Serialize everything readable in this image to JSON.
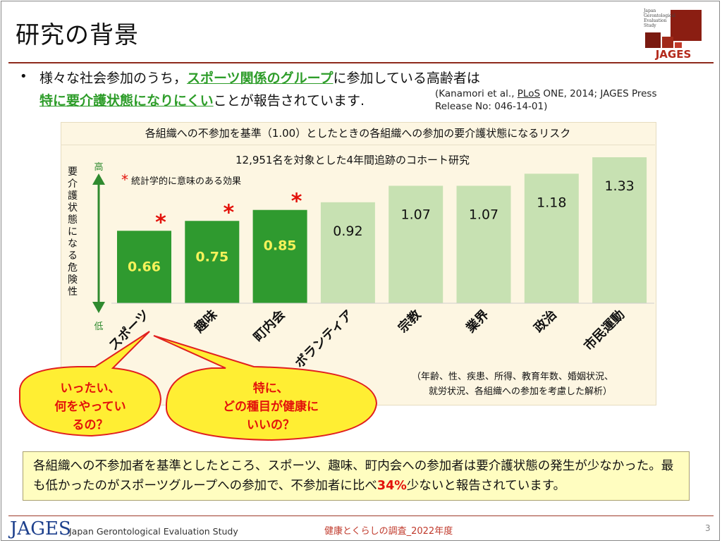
{
  "header": {
    "title": "研究の背景"
  },
  "logo": {
    "small_text": "Japan Gerontological Evaluation Study",
    "brand": "JAGES"
  },
  "intro": {
    "bullet": "•",
    "line1_a": "様々な社会参加のうち，",
    "line1_hl": "スポーツ関係のグループ",
    "line1_b": "に参加している高齢者は",
    "line2_hl": "特に要介護状態になりにくい",
    "line2_b": "ことが報告されています.",
    "cite_a": "(Kanamori et al., ",
    "cite_journal": "PLoS",
    "cite_b": " ONE, 2014; JAGES Press",
    "cite_c": "Release No: 046-14-01)"
  },
  "chart_data": {
    "type": "bar",
    "title": "各組織への不参加を基準（1.00）としたときの各組織への参加の要介護状態になるリスク",
    "subtitle": "12,951名を対象とした4年間追跡のコホート研究",
    "significance_note": "統計学的に意味のある効果",
    "ylabel": "要介護状態になる危険性",
    "y_high": "高",
    "y_low": "低",
    "categories": [
      "スポーツ",
      "趣味",
      "町内会",
      "ボランティア",
      "宗教",
      "業界",
      "政治",
      "市民運動"
    ],
    "values": [
      0.66,
      0.75,
      0.85,
      0.92,
      1.07,
      1.07,
      1.18,
      1.33
    ],
    "significant": [
      true,
      true,
      true,
      false,
      false,
      false,
      false,
      false
    ],
    "colors": {
      "significant": "#2f9a2f",
      "nonsignificant": "#c7e1b2",
      "sig_label": "#f5f25a",
      "star": "#e3120b",
      "axis": "#2f8a2f"
    },
    "adjustment_note_1": "（年齢、性、疾患、所得、教育年数、婚姻状況、",
    "adjustment_note_2": "就労状況、各組織への参加を考慮した解析）"
  },
  "bubbles": {
    "left": [
      "いったい、",
      "何をやってい",
      "るの？"
    ],
    "right": [
      "特に、",
      "どの種目が健康に",
      "いいの？"
    ]
  },
  "summary": {
    "text_a": "各組織への不参加者を基準としたところ、スポーツ、趣味、町内会への参加者は要介護状態の発生が少なかった。最も低かったのがスポーツグループへの参加で、不参加者に比べ",
    "percent": "34%",
    "text_b": "少ないと報告されています。"
  },
  "footer": {
    "logo": "JAGES",
    "subtitle": "Japan Gerontological Evaluation Study",
    "center": "健康とくらしの調査_2022年度",
    "page": "3"
  }
}
